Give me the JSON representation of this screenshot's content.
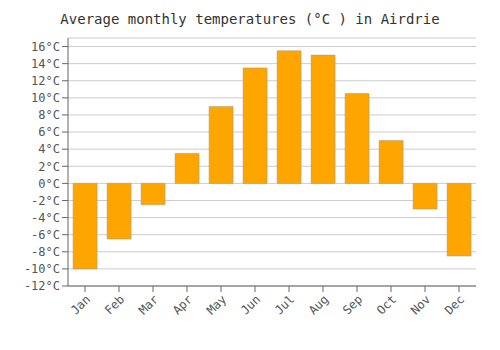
{
  "chart_data": {
    "type": "bar",
    "title": "Average monthly temperatures (°C ) in Airdrie",
    "categories": [
      "Jan",
      "Feb",
      "Mar",
      "Apr",
      "May",
      "Jun",
      "Jul",
      "Aug",
      "Sep",
      "Oct",
      "Nov",
      "Dec"
    ],
    "values": [
      -10.0,
      -6.5,
      -2.5,
      3.5,
      9.0,
      13.5,
      15.5,
      15.0,
      10.5,
      5.0,
      -3.0,
      -8.5
    ],
    "color": "#FFA500",
    "ylim": [
      -12,
      17
    ],
    "yticks": [
      {
        "value": -12,
        "label": "-12°C"
      },
      {
        "value": -10,
        "label": "-10°C"
      },
      {
        "value": -8,
        "label": "-8°C"
      },
      {
        "value": -6,
        "label": "-6°C"
      },
      {
        "value": -4,
        "label": "-4°C"
      },
      {
        "value": -2,
        "label": "-2°C"
      },
      {
        "value": 0,
        "label": "0°C"
      },
      {
        "value": 2,
        "label": "2°C"
      },
      {
        "value": 4,
        "label": "4°C"
      },
      {
        "value": 6,
        "label": "6°C"
      },
      {
        "value": 8,
        "label": "8°C"
      },
      {
        "value": 10,
        "label": "10°C"
      },
      {
        "value": 12,
        "label": "12°C"
      },
      {
        "value": 14,
        "label": "14°C"
      },
      {
        "value": 16,
        "label": "16°C"
      }
    ],
    "grid": true
  }
}
